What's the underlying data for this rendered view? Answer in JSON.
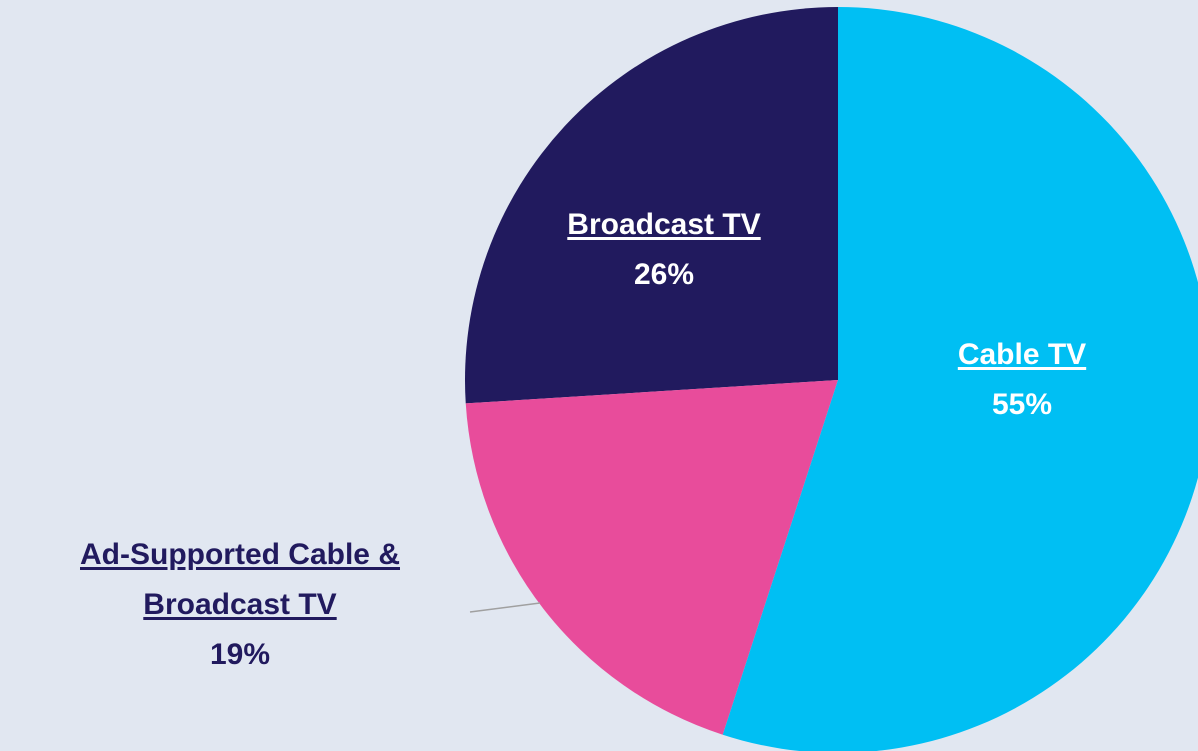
{
  "chart_data": {
    "type": "pie",
    "categories": [
      "Cable TV",
      "Ad-Supported Cable & Broadcast TV",
      "Broadcast TV"
    ],
    "values": [
      55,
      19,
      26
    ],
    "value_labels": [
      "55%",
      "19%",
      "26%"
    ],
    "colors": [
      "#00bff3",
      "#e84c9b",
      "#211a5e"
    ]
  }
}
